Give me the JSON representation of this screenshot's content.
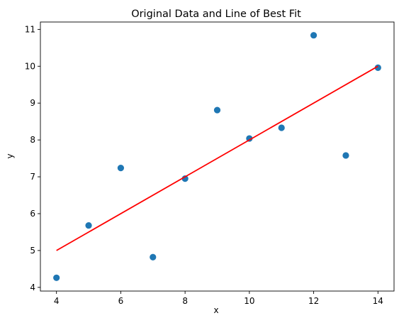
{
  "chart_data": {
    "type": "scatter",
    "title": "Original Data and Line of Best Fit",
    "xlabel": "x",
    "ylabel": "y",
    "xlim": [
      3.5,
      14.5
    ],
    "ylim": [
      3.9,
      11.2
    ],
    "xticks": [
      4,
      6,
      8,
      10,
      12,
      14
    ],
    "yticks": [
      4,
      5,
      6,
      7,
      8,
      9,
      10,
      11
    ],
    "grid": false,
    "points": {
      "x": [
        4,
        5,
        6,
        7,
        8,
        9,
        10,
        11,
        12,
        13,
        14
      ],
      "y": [
        4.26,
        5.68,
        7.24,
        4.82,
        6.95,
        8.81,
        8.04,
        8.33,
        10.84,
        7.58,
        9.96
      ],
      "color": "#1f77b4"
    },
    "fit_line": {
      "x": [
        4,
        14
      ],
      "y": [
        5.0,
        10.0
      ],
      "color": "#ff0000"
    }
  }
}
